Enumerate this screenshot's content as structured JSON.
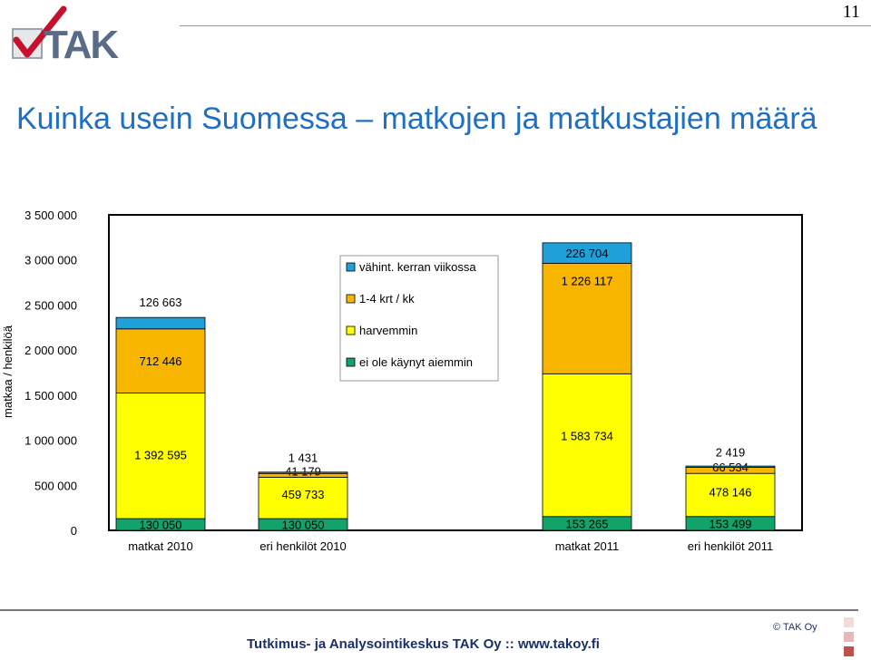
{
  "page_number": "11",
  "logo_text": "TAK",
  "title": "Kuinka usein Suomessa – matkojen ja matkustajien määrä",
  "footer": {
    "text": "Tutkimus- ja Analysointikeskus TAK Oy  ::  www.takoy.fi",
    "copyright": "© TAK Oy"
  },
  "colors": {
    "title": "#1f6fc5",
    "weekly": "#1fa0d8",
    "monthly": "#f7b500",
    "less": "#ffff00",
    "never": "#11a36a"
  },
  "chart_data": {
    "type": "bar",
    "stacked": true,
    "ylabel": "matkaa / henkilöä",
    "ylim": [
      0,
      3500000
    ],
    "yticks": [
      0,
      500000,
      1000000,
      1500000,
      2000000,
      2500000,
      3000000,
      3500000
    ],
    "ytick_labels": [
      "0",
      "500 000",
      "1 000 000",
      "1 500 000",
      "2 000 000",
      "2 500 000",
      "3 000 000",
      "3 500 000"
    ],
    "categories": [
      "matkat 2010",
      "eri henkilöt 2010",
      "matkat 2011",
      "eri henkilöt 2011"
    ],
    "legend_position": "top-center",
    "series": [
      {
        "name": "ei ole käynyt aiemmin",
        "color": "#11a36a",
        "values": [
          130050,
          130050,
          153265,
          153499
        ],
        "labels": [
          "130 050",
          "130 050",
          "153 265",
          "153 499"
        ]
      },
      {
        "name": "harvemmin",
        "color": "#ffff00",
        "values": [
          1392595,
          459733,
          1583734,
          478146
        ],
        "labels": [
          "1 392 595",
          "459 733",
          "1 583 734",
          "478 146"
        ]
      },
      {
        "name": "1-4 krt / kk",
        "color": "#f7b500",
        "values": [
          712446,
          41179,
          1226117,
          66534
        ],
        "labels": [
          "712 446",
          "41 179",
          "1 226 117",
          "66 534"
        ]
      },
      {
        "name": "vähint. kerran viikossa",
        "color": "#1fa0d8",
        "values": [
          126663,
          1431,
          226704,
          2419
        ],
        "labels": [
          "126 663",
          "1 431",
          "226 704",
          "2 419"
        ]
      }
    ]
  }
}
